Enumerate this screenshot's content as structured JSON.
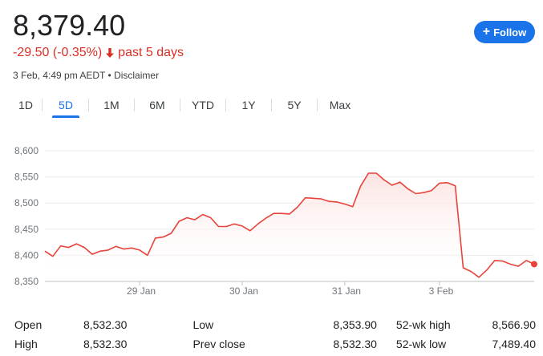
{
  "quote": {
    "price": "8,379.40",
    "change": "-29.50 (-0.35%)",
    "period": "past 5 days",
    "timestamp": "3 Feb, 4:49 pm AEDT",
    "separator": "•",
    "disclaimer": "Disclaimer"
  },
  "follow_button": {
    "label": "Follow",
    "icon": "plus-icon"
  },
  "colors": {
    "accent": "#1a73e8",
    "down": "#d93025",
    "line": "#e8433a"
  },
  "tabs": [
    {
      "label": "1D",
      "active": false
    },
    {
      "label": "5D",
      "active": true
    },
    {
      "label": "1M",
      "active": false
    },
    {
      "label": "6M",
      "active": false
    },
    {
      "label": "YTD",
      "active": false
    },
    {
      "label": "1Y",
      "active": false
    },
    {
      "label": "5Y",
      "active": false
    },
    {
      "label": "Max",
      "active": false
    }
  ],
  "chart_data": {
    "type": "area",
    "ylim": [
      8350,
      8600
    ],
    "y_ticks": [
      {
        "label": "8,600",
        "value": 8600
      },
      {
        "label": "8,550",
        "value": 8550
      },
      {
        "label": "8,500",
        "value": 8500
      },
      {
        "label": "8,450",
        "value": 8450
      },
      {
        "label": "8,400",
        "value": 8400
      },
      {
        "label": "8,350",
        "value": 8350
      }
    ],
    "x_ticks": [
      {
        "label": "29 Jan",
        "index": 12
      },
      {
        "label": "30 Jan",
        "index": 25
      },
      {
        "label": "31 Jan",
        "index": 38
      },
      {
        "label": "3 Feb",
        "index": 50
      }
    ],
    "x_count": 63,
    "grid": true,
    "values": [
      8408,
      8398,
      8418,
      8415,
      8422,
      8415,
      8402,
      8408,
      8410,
      8417,
      8412,
      8414,
      8410,
      8400,
      8433,
      8435,
      8442,
      8465,
      8472,
      8468,
      8478,
      8472,
      8455,
      8455,
      8460,
      8456,
      8447,
      8460,
      8471,
      8480,
      8480,
      8479,
      8492,
      8510,
      8509,
      8508,
      8503,
      8502,
      8498,
      8493,
      8532,
      8557,
      8557,
      8544,
      8534,
      8540,
      8527,
      8518,
      8520,
      8524,
      8538,
      8539,
      8533,
      8376,
      8369,
      8358,
      8372,
      8390,
      8389,
      8383,
      8379,
      8390,
      8383
    ]
  },
  "stats": [
    {
      "label": "Open",
      "value": "8,532.30"
    },
    {
      "label": "High",
      "value": "8,532.30"
    },
    {
      "label": "Low",
      "value": "8,353.90"
    },
    {
      "label": "Prev close",
      "value": "8,532.30"
    },
    {
      "label": "52-wk high",
      "value": "8,566.90"
    },
    {
      "label": "52-wk low",
      "value": "7,489.40"
    }
  ]
}
